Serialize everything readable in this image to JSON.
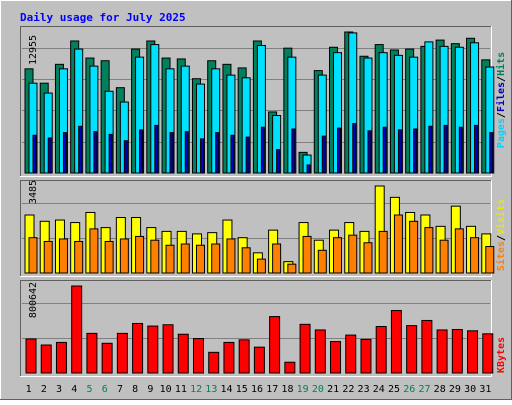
{
  "chart_data": {
    "type": "bar",
    "title": "Daily usage for July 2025",
    "days": [
      1,
      2,
      3,
      4,
      5,
      6,
      7,
      8,
      9,
      10,
      11,
      12,
      13,
      14,
      15,
      16,
      17,
      18,
      19,
      20,
      21,
      22,
      23,
      24,
      25,
      26,
      27,
      28,
      29,
      30,
      31
    ],
    "weekend_days": [
      5,
      6,
      12,
      13,
      19,
      20,
      26,
      27
    ],
    "panels": [
      {
        "id": "hits",
        "scale_label": "12955",
        "scale_value": 12955,
        "series": [
          {
            "name": "Hits",
            "color": "#00805c",
            "values": [
              11600,
              10000,
              12100,
              14700,
              12800,
              12500,
              9500,
              13800,
              14700,
              12800,
              12700,
              10500,
              12500,
              12100,
              11700,
              14700,
              6800,
              13900,
              2300,
              11400,
              14000,
              15700,
              13000,
              14300,
              13700,
              13800,
              14100,
              14800,
              14400,
              15000,
              12600
            ]
          },
          {
            "name": "Files",
            "color": "#00e0ff",
            "values": [
              10000,
              8900,
              11600,
              13800,
              11900,
              9100,
              7900,
              12900,
              14300,
              11600,
              11900,
              9900,
              11600,
              10900,
              10600,
              14200,
              6400,
              12900,
              2000,
              10900,
              13400,
              15600,
              12800,
              13400,
              13100,
              12900,
              14600,
              14100,
              14000,
              14500,
              11800
            ]
          },
          {
            "name": "Pages",
            "color": "#0000c0",
            "values": [
              4200,
              3900,
              4500,
              5200,
              4600,
              4300,
              3600,
              4800,
              5300,
              4500,
              4600,
              3800,
              4500,
              4200,
              4000,
              5100,
              2600,
              4900,
              900,
              4100,
              5000,
              5500,
              4700,
              5100,
              4800,
              4900,
              5200,
              5300,
              5100,
              5300,
              4500
            ]
          }
        ]
      },
      {
        "id": "visits",
        "scale_label": "3485",
        "scale_value": 3485,
        "series": [
          {
            "name": "Visits",
            "color": "#ffff00",
            "values": [
              2300,
              2050,
              2100,
              2000,
              2400,
              1800,
              2200,
              2200,
              1800,
              1650,
              1650,
              1550,
              1600,
              2100,
              1400,
              800,
              1700,
              450,
              2000,
              1300,
              1700,
              2000,
              1650,
              3450,
              3000,
              2400,
              2300,
              1850,
              2650,
              1850,
              1550
            ]
          },
          {
            "name": "Sites",
            "color": "#ff8000",
            "values": [
              1400,
              1250,
              1350,
              1250,
              1750,
              1250,
              1350,
              1450,
              1300,
              1100,
              1150,
              1100,
              1150,
              1350,
              1000,
              550,
              1150,
              350,
              1450,
              900,
              1400,
              1500,
              1200,
              1650,
              2300,
              2050,
              1800,
              1300,
              1750,
              1400,
              1050
            ]
          }
        ]
      },
      {
        "id": "kbytes",
        "scale_label": "800642",
        "scale_value": 800642,
        "series": [
          {
            "name": "KBytes",
            "color": "#ff0000",
            "values": [
              395000,
              325000,
              355000,
              1010000,
              460000,
              345000,
              460000,
              575000,
              545000,
              560000,
              450000,
              400000,
              240000,
              355000,
              385000,
              300000,
              655000,
              125000,
              565000,
              500000,
              365000,
              440000,
              390000,
              540000,
              725000,
              550000,
              610000,
              500000,
              505000,
              490000,
              455000
            ]
          }
        ]
      }
    ]
  },
  "labels": {
    "pages": "Pages",
    "files": "Files",
    "hits": "Hits",
    "sites": "Sites",
    "visits": "Visits",
    "kbytes": "KBytes",
    "sep": "/"
  },
  "colors": {
    "background": "#c0c0c0",
    "title": "#0000ff",
    "day_weekday": "#000000",
    "day_weekend": "#00805c",
    "grid": "#808080"
  }
}
